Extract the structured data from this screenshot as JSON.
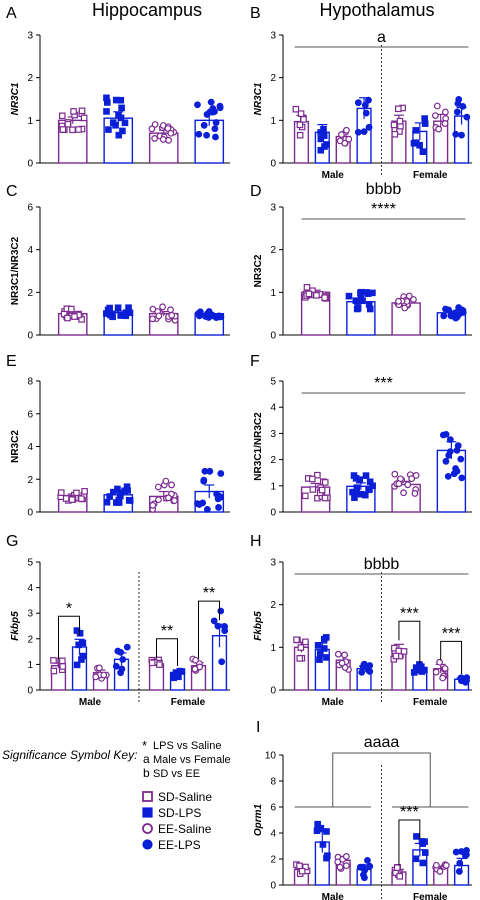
{
  "colors": {
    "purple": "#7b2a8f",
    "blue": "#0a1fd6",
    "line": "#555555"
  },
  "legend": {
    "key_title": "Significance Symbol Key:",
    "key_items": [
      {
        "symbol": "*",
        "text": "LPS vs Saline"
      },
      {
        "symbol": "a",
        "text": "Male vs Female"
      },
      {
        "symbol": "b",
        "text": "SD vs EE"
      }
    ],
    "groups": [
      {
        "label": "SD-Saline",
        "color": "purple",
        "shape": "square",
        "filled": false
      },
      {
        "label": "SD-LPS",
        "color": "blue",
        "shape": "square",
        "filled": true
      },
      {
        "label": "EE-Saline",
        "color": "purple",
        "shape": "circle",
        "filled": false
      },
      {
        "label": "EE-LPS",
        "color": "blue",
        "shape": "circle",
        "filled": true
      }
    ]
  },
  "chart_data": [
    {
      "panel": "A",
      "type": "bar",
      "title": "Hippocampus",
      "ylabel": "NR3C1",
      "ylabel_italic": true,
      "ylim": [
        0,
        3
      ],
      "yticks": [
        0,
        1,
        2,
        3
      ],
      "sex_split": false,
      "values": [
        1.0,
        1.05,
        0.7,
        1.0
      ],
      "sem": [
        0.08,
        0.15,
        0.07,
        0.13
      ],
      "annotations": []
    },
    {
      "panel": "B",
      "type": "bar",
      "title": "Hypothalamus",
      "ylabel": "NR3C1",
      "ylabel_italic": true,
      "ylim": [
        0,
        3
      ],
      "yticks": [
        0,
        1,
        2,
        3
      ],
      "sex_split": true,
      "groups": [
        "Male",
        "Female"
      ],
      "values": [
        0.97,
        0.72,
        0.62,
        1.28,
        0.98,
        0.74,
        0.98,
        1.1
      ],
      "sem": [
        0.15,
        0.18,
        0.07,
        0.25,
        0.14,
        0.2,
        0.16,
        0.2
      ],
      "annotations": [
        {
          "text": "a",
          "span": "all"
        }
      ]
    },
    {
      "panel": "C",
      "type": "bar",
      "title": "",
      "ylabel": "NR3C1/NR3C2",
      "ylabel_italic": false,
      "ylim": [
        0,
        6
      ],
      "yticks": [
        0,
        2,
        4,
        6
      ],
      "sex_split": false,
      "values": [
        1.0,
        1.05,
        1.0,
        1.0
      ],
      "sem": [
        0.08,
        0.07,
        0.1,
        0.06
      ],
      "annotations": []
    },
    {
      "panel": "D",
      "type": "bar",
      "title": "",
      "ylabel": "NR3C2",
      "ylabel_italic": false,
      "ylim": [
        0,
        3
      ],
      "yticks": [
        0,
        1,
        2,
        3
      ],
      "sex_split": false,
      "values": [
        1.0,
        0.78,
        0.75,
        0.52
      ],
      "sem": [
        0.05,
        0.07,
        0.05,
        0.04
      ],
      "annotations": [
        {
          "text": "****",
          "span": "all"
        },
        {
          "text": "bbbb",
          "span": "all"
        }
      ]
    },
    {
      "panel": "E",
      "type": "bar",
      "title": "",
      "ylabel": "NR3C2",
      "ylabel_italic": false,
      "ylim": [
        0,
        8
      ],
      "yticks": [
        0,
        2,
        4,
        6,
        8
      ],
      "sex_split": false,
      "values": [
        1.0,
        1.05,
        0.95,
        1.25
      ],
      "sem": [
        0.1,
        0.15,
        0.3,
        0.4
      ],
      "annotations": []
    },
    {
      "panel": "F",
      "type": "bar",
      "title": "",
      "ylabel": "NR3C1/NR3C2",
      "ylabel_italic": false,
      "ylim": [
        0,
        5
      ],
      "yticks": [
        0,
        1,
        2,
        3,
        4,
        5
      ],
      "sex_split": false,
      "values": [
        0.95,
        0.98,
        1.05,
        2.35
      ],
      "sem": [
        0.14,
        0.13,
        0.12,
        0.33
      ],
      "annotations": [
        {
          "text": "***",
          "span": "all"
        }
      ]
    },
    {
      "panel": "G",
      "type": "bar",
      "title": "",
      "ylabel": "Fkbp5",
      "ylabel_italic": true,
      "ylim": [
        0,
        5
      ],
      "yticks": [
        0,
        1,
        2,
        3,
        4,
        5
      ],
      "sex_split": true,
      "groups": [
        "Male",
        "Female"
      ],
      "values": [
        0.95,
        1.68,
        0.68,
        1.2,
        1.02,
        0.68,
        0.95,
        2.12
      ],
      "sem": [
        0.1,
        0.3,
        0.1,
        0.25,
        0.08,
        0.1,
        0.12,
        0.45
      ],
      "annotations": [
        {
          "text": "*",
          "pair": [
            0,
            1
          ]
        },
        {
          "text": "**",
          "pair": [
            4,
            5
          ]
        },
        {
          "text": "**",
          "pair": [
            6,
            7
          ]
        }
      ]
    },
    {
      "panel": "H",
      "type": "bar",
      "title": "",
      "ylabel": "Fkbp5",
      "ylabel_italic": true,
      "ylim": [
        0,
        3
      ],
      "yticks": [
        0,
        1,
        2,
        3
      ],
      "sex_split": true,
      "groups": [
        "Male",
        "Female"
      ],
      "values": [
        1.0,
        0.95,
        0.7,
        0.5,
        0.95,
        0.45,
        0.5,
        0.25
      ],
      "sem": [
        0.12,
        0.15,
        0.1,
        0.06,
        0.12,
        0.08,
        0.1,
        0.03
      ],
      "annotations": [
        {
          "text": "bbbb",
          "span": "all"
        },
        {
          "text": "***",
          "pair": [
            4,
            5
          ]
        },
        {
          "text": "***",
          "pair": [
            6,
            7
          ]
        }
      ]
    },
    {
      "panel": "I",
      "type": "bar",
      "title": "",
      "ylabel": "Oprm1",
      "ylabel_italic": true,
      "ylim": [
        0,
        10
      ],
      "yticks": [
        0,
        2,
        4,
        6,
        8,
        10
      ],
      "sex_split": true,
      "groups": [
        "Male",
        "Female"
      ],
      "values": [
        1.2,
        3.3,
        1.9,
        1.2,
        1.0,
        2.7,
        1.3,
        1.5
      ],
      "sem": [
        0.25,
        0.8,
        0.3,
        0.35,
        0.2,
        0.5,
        0.15,
        0.55
      ],
      "annotations": [
        {
          "text": "aaaa",
          "span": "bracket"
        },
        {
          "text": "***",
          "pair": [
            4,
            5
          ]
        }
      ]
    }
  ]
}
